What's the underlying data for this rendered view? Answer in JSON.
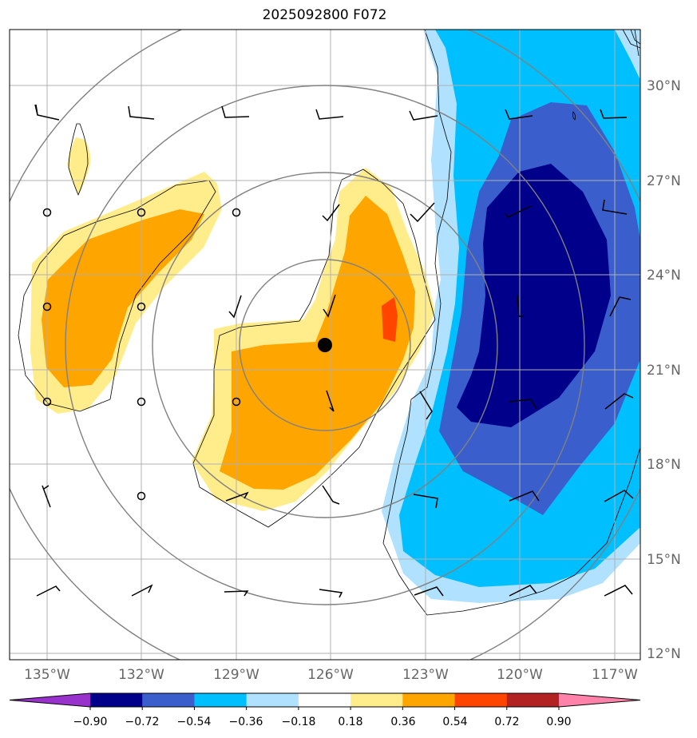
{
  "title": "2025092800 F072",
  "map": {
    "lon_labels": [
      "135°W",
      "132°W",
      "129°W",
      "126°W",
      "123°W",
      "120°W",
      "117°W"
    ],
    "lat_labels": [
      "30°N",
      "27°N",
      "24°N",
      "21°N",
      "18°N",
      "15°N",
      "12°N"
    ],
    "lon_values": [
      -135,
      -132,
      -129,
      -126,
      -123,
      -120,
      -117
    ],
    "lat_values": [
      30,
      27,
      24,
      21,
      18,
      15,
      12
    ],
    "center": {
      "lon": -126.3,
      "lat": 21.7
    }
  },
  "colorbar": {
    "ticks": [
      "−0.90",
      "−0.72",
      "−0.54",
      "−0.36",
      "−0.18",
      "0.18",
      "0.36",
      "0.54",
      "0.72",
      "0.90"
    ],
    "colors": [
      "#9932cc",
      "#00008b",
      "#3a5fcd",
      "#00bfff",
      "#b0e2ff",
      "#ffffff",
      "#ffec8b",
      "#ffa500",
      "#ff4500",
      "#b22222",
      "#ff82ab"
    ]
  },
  "fill_colors": {
    "yellow": "#ffec8b",
    "orange": "#ffa500",
    "red": "#ff4500",
    "light_blue": "#b0e2ff",
    "blue": "#00bfff",
    "mid_blue": "#3a5fcd",
    "navy": "#00008b"
  }
}
